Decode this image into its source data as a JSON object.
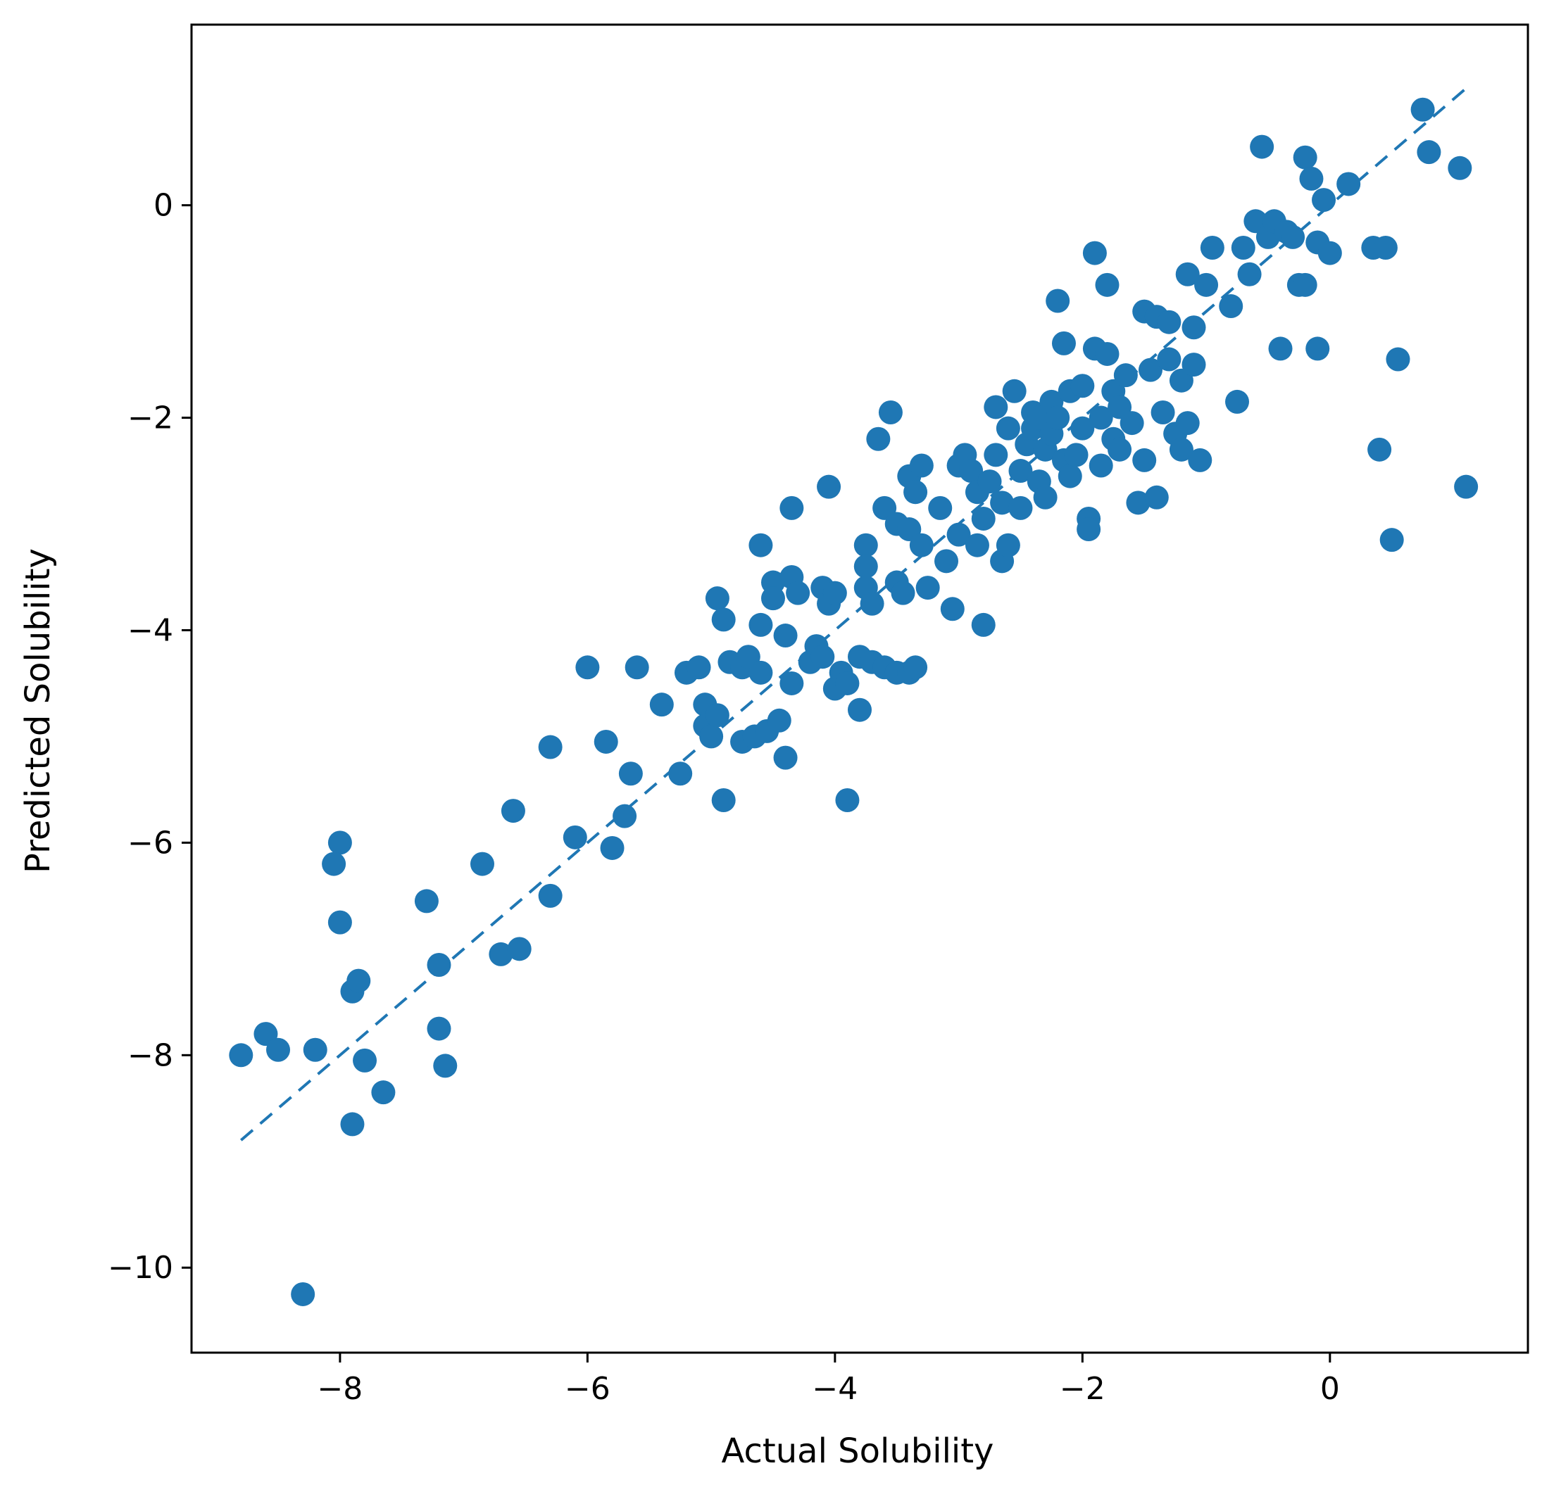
{
  "chart_data": {
    "type": "scatter",
    "xlabel": "Actual Solubility",
    "ylabel": "Predicted Solubility",
    "xlim": [
      -9.2,
      1.6
    ],
    "ylim": [
      -10.8,
      1.7
    ],
    "xticks": [
      -8,
      -6,
      -4,
      -2,
      0
    ],
    "yticks": [
      0,
      -2,
      -4,
      -6,
      -8,
      -10
    ],
    "xtick_labels": [
      "−8",
      "−6",
      "−4",
      "−2",
      "0"
    ],
    "ytick_labels": [
      "0",
      "−2",
      "−4",
      "−6",
      "−8",
      "−10"
    ],
    "color": "#1f77b4",
    "grid": false,
    "reference_line": {
      "style": "dashed",
      "from": [
        -8.8,
        -8.8
      ],
      "to": [
        1.1,
        1.1
      ]
    },
    "points": [
      [
        -8.8,
        -8.0
      ],
      [
        -8.6,
        -7.8
      ],
      [
        -8.5,
        -7.95
      ],
      [
        -8.2,
        -7.95
      ],
      [
        -8.3,
        -10.25
      ],
      [
        -8.0,
        -6.0
      ],
      [
        -8.05,
        -6.2
      ],
      [
        -8.0,
        -6.75
      ],
      [
        -7.9,
        -7.4
      ],
      [
        -7.85,
        -7.3
      ],
      [
        -7.8,
        -8.05
      ],
      [
        -7.9,
        -8.65
      ],
      [
        -7.65,
        -8.35
      ],
      [
        -7.3,
        -6.55
      ],
      [
        -7.2,
        -7.15
      ],
      [
        -7.2,
        -7.75
      ],
      [
        -7.15,
        -8.1
      ],
      [
        -6.85,
        -6.2
      ],
      [
        -6.7,
        -7.05
      ],
      [
        -6.55,
        -7.0
      ],
      [
        -6.6,
        -5.7
      ],
      [
        -6.3,
        -6.5
      ],
      [
        -6.3,
        -5.1
      ],
      [
        -6.1,
        -5.95
      ],
      [
        -6.0,
        -4.35
      ],
      [
        -5.85,
        -5.05
      ],
      [
        -5.8,
        -6.05
      ],
      [
        -5.7,
        -5.75
      ],
      [
        -5.65,
        -5.35
      ],
      [
        -5.6,
        -4.35
      ],
      [
        -5.4,
        -4.7
      ],
      [
        -5.25,
        -5.35
      ],
      [
        -5.2,
        -4.4
      ],
      [
        -5.1,
        -4.35
      ],
      [
        -5.05,
        -4.7
      ],
      [
        -5.05,
        -4.9
      ],
      [
        -5.0,
        -5.0
      ],
      [
        -4.95,
        -4.8
      ],
      [
        -4.95,
        -3.7
      ],
      [
        -4.9,
        -3.9
      ],
      [
        -4.9,
        -5.6
      ],
      [
        -4.85,
        -4.3
      ],
      [
        -4.75,
        -4.35
      ],
      [
        -4.75,
        -5.05
      ],
      [
        -4.7,
        -4.25
      ],
      [
        -4.65,
        -5.0
      ],
      [
        -4.6,
        -4.4
      ],
      [
        -4.6,
        -3.95
      ],
      [
        -4.6,
        -3.2
      ],
      [
        -4.55,
        -4.95
      ],
      [
        -4.5,
        -3.55
      ],
      [
        -4.5,
        -3.7
      ],
      [
        -4.45,
        -4.85
      ],
      [
        -4.4,
        -5.2
      ],
      [
        -4.4,
        -4.05
      ],
      [
        -4.35,
        -3.5
      ],
      [
        -4.35,
        -2.85
      ],
      [
        -4.35,
        -4.5
      ],
      [
        -4.3,
        -3.65
      ],
      [
        -4.2,
        -4.3
      ],
      [
        -4.15,
        -4.15
      ],
      [
        -4.1,
        -4.25
      ],
      [
        -4.1,
        -3.6
      ],
      [
        -4.05,
        -3.75
      ],
      [
        -4.05,
        -2.65
      ],
      [
        -4.0,
        -4.55
      ],
      [
        -4.0,
        -3.65
      ],
      [
        -3.95,
        -4.4
      ],
      [
        -3.9,
        -4.5
      ],
      [
        -3.9,
        -5.6
      ],
      [
        -3.8,
        -4.25
      ],
      [
        -3.8,
        -4.75
      ],
      [
        -3.75,
        -3.2
      ],
      [
        -3.75,
        -3.4
      ],
      [
        -3.75,
        -3.6
      ],
      [
        -3.7,
        -4.3
      ],
      [
        -3.7,
        -3.75
      ],
      [
        -3.65,
        -2.2
      ],
      [
        -3.6,
        -2.85
      ],
      [
        -3.6,
        -4.35
      ],
      [
        -3.55,
        -1.95
      ],
      [
        -3.5,
        -4.4
      ],
      [
        -3.5,
        -3.0
      ],
      [
        -3.5,
        -3.55
      ],
      [
        -3.45,
        -3.65
      ],
      [
        -3.4,
        -4.4
      ],
      [
        -3.4,
        -3.05
      ],
      [
        -3.4,
        -2.55
      ],
      [
        -3.35,
        -2.7
      ],
      [
        -3.35,
        -4.35
      ],
      [
        -3.3,
        -3.2
      ],
      [
        -3.3,
        -2.45
      ],
      [
        -3.25,
        -3.6
      ],
      [
        -3.15,
        -2.85
      ],
      [
        -3.1,
        -3.35
      ],
      [
        -3.05,
        -3.8
      ],
      [
        -3.0,
        -3.1
      ],
      [
        -3.0,
        -2.45
      ],
      [
        -2.95,
        -2.35
      ],
      [
        -2.9,
        -2.5
      ],
      [
        -2.85,
        -2.7
      ],
      [
        -2.85,
        -3.2
      ],
      [
        -2.8,
        -2.95
      ],
      [
        -2.8,
        -3.95
      ],
      [
        -2.75,
        -2.6
      ],
      [
        -2.7,
        -2.35
      ],
      [
        -2.7,
        -1.9
      ],
      [
        -2.65,
        -2.8
      ],
      [
        -2.65,
        -3.35
      ],
      [
        -2.6,
        -3.2
      ],
      [
        -2.6,
        -2.1
      ],
      [
        -2.55,
        -1.75
      ],
      [
        -2.5,
        -2.5
      ],
      [
        -2.5,
        -2.85
      ],
      [
        -2.45,
        -2.25
      ],
      [
        -2.4,
        -2.1
      ],
      [
        -2.4,
        -1.95
      ],
      [
        -2.35,
        -2.6
      ],
      [
        -2.35,
        -2.0
      ],
      [
        -2.3,
        -2.3
      ],
      [
        -2.3,
        -2.75
      ],
      [
        -2.25,
        -1.85
      ],
      [
        -2.25,
        -2.15
      ],
      [
        -2.2,
        -2.0
      ],
      [
        -2.2,
        -0.9
      ],
      [
        -2.15,
        -1.3
      ],
      [
        -2.15,
        -2.4
      ],
      [
        -2.1,
        -1.75
      ],
      [
        -2.1,
        -2.55
      ],
      [
        -2.05,
        -2.35
      ],
      [
        -2.0,
        -1.7
      ],
      [
        -2.0,
        -2.1
      ],
      [
        -1.95,
        -2.95
      ],
      [
        -1.95,
        -3.05
      ],
      [
        -1.9,
        -0.45
      ],
      [
        -1.9,
        -1.35
      ],
      [
        -1.85,
        -2.45
      ],
      [
        -1.85,
        -2.0
      ],
      [
        -1.8,
        -0.75
      ],
      [
        -1.8,
        -1.4
      ],
      [
        -1.75,
        -1.75
      ],
      [
        -1.75,
        -2.2
      ],
      [
        -1.7,
        -1.9
      ],
      [
        -1.7,
        -2.3
      ],
      [
        -1.65,
        -1.6
      ],
      [
        -1.6,
        -2.05
      ],
      [
        -1.55,
        -2.8
      ],
      [
        -1.5,
        -2.4
      ],
      [
        -1.5,
        -1.0
      ],
      [
        -1.45,
        -1.55
      ],
      [
        -1.4,
        -1.05
      ],
      [
        -1.4,
        -2.75
      ],
      [
        -1.35,
        -1.95
      ],
      [
        -1.3,
        -1.1
      ],
      [
        -1.3,
        -1.45
      ],
      [
        -1.25,
        -2.15
      ],
      [
        -1.2,
        -2.3
      ],
      [
        -1.2,
        -1.65
      ],
      [
        -1.15,
        -0.65
      ],
      [
        -1.15,
        -2.05
      ],
      [
        -1.1,
        -1.15
      ],
      [
        -1.1,
        -1.5
      ],
      [
        -1.05,
        -2.4
      ],
      [
        -1.0,
        -0.75
      ],
      [
        -0.95,
        -0.4
      ],
      [
        -0.8,
        -0.95
      ],
      [
        -0.75,
        -1.85
      ],
      [
        -0.7,
        -0.4
      ],
      [
        -0.65,
        -0.65
      ],
      [
        -0.6,
        -0.15
      ],
      [
        -0.55,
        0.55
      ],
      [
        -0.5,
        -0.3
      ],
      [
        -0.45,
        -0.15
      ],
      [
        -0.4,
        -1.35
      ],
      [
        -0.35,
        -0.25
      ],
      [
        -0.3,
        -0.3
      ],
      [
        -0.25,
        -0.75
      ],
      [
        -0.2,
        -0.75
      ],
      [
        -0.2,
        0.45
      ],
      [
        -0.15,
        0.25
      ],
      [
        -0.1,
        -0.35
      ],
      [
        -0.1,
        -1.35
      ],
      [
        -0.05,
        0.05
      ],
      [
        0.0,
        -0.45
      ],
      [
        0.15,
        0.2
      ],
      [
        0.35,
        -0.4
      ],
      [
        0.4,
        -2.3
      ],
      [
        0.45,
        -0.4
      ],
      [
        0.5,
        -3.15
      ],
      [
        0.55,
        -1.45
      ],
      [
        0.75,
        0.9
      ],
      [
        0.8,
        0.5
      ],
      [
        1.05,
        0.35
      ],
      [
        1.1,
        -2.65
      ]
    ]
  }
}
